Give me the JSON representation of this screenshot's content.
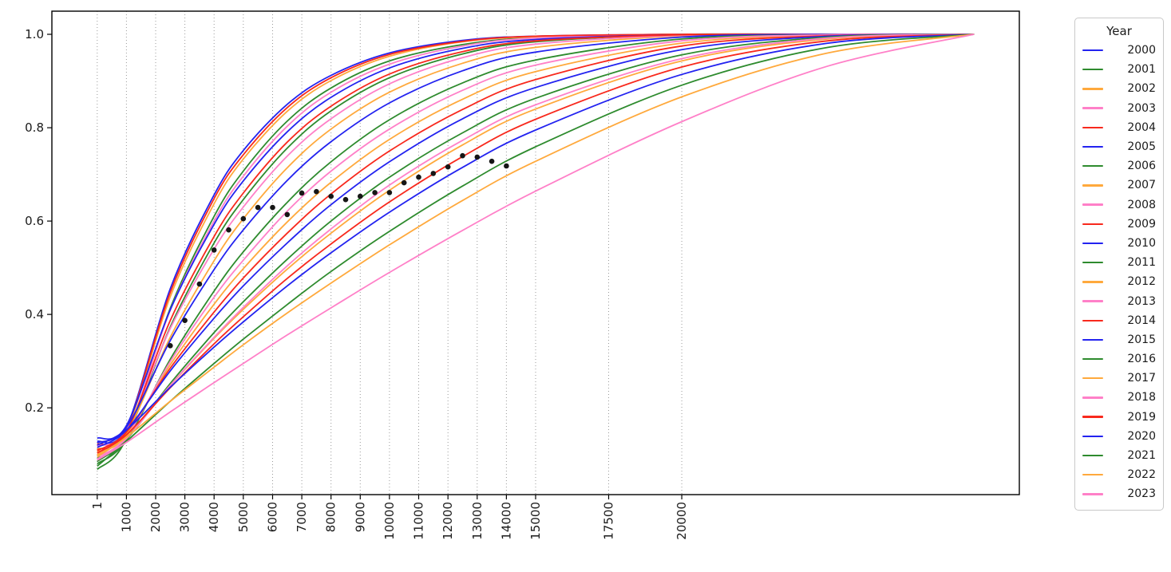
{
  "figure": {
    "background": "#ffffff"
  },
  "legend": {
    "title": "Year"
  },
  "chart_data": {
    "type": "line",
    "title": "",
    "xlabel": "",
    "ylabel": "",
    "grid": "vertical-dotted",
    "grid_color": "#9a9a9a",
    "axis_color": "#000000",
    "tick_label_color": "#1a1a1a",
    "xlim": [
      -1550,
      31550
    ],
    "ylim": [
      0.014,
      1.0496
    ],
    "x_ticks": [
      1,
      1000,
      2000,
      3000,
      4000,
      5000,
      6000,
      7000,
      8000,
      9000,
      10000,
      11000,
      12000,
      13000,
      14000,
      15000,
      17500,
      20000
    ],
    "y_ticks": [
      0.2,
      0.4,
      0.6,
      0.8,
      1.0
    ],
    "legend_position": "right",
    "x_samples": [
      1,
      1000,
      2500,
      4000,
      5000,
      6500,
      8000,
      10000,
      12500,
      15000,
      20000,
      25000,
      30000
    ],
    "series": [
      {
        "name": "2000",
        "color": "#2323f0",
        "values": [
          0.128,
          0.158,
          0.455,
          0.656,
          0.751,
          0.85,
          0.912,
          0.96,
          0.987,
          0.996,
          1.0,
          1.0,
          1.0
        ]
      },
      {
        "name": "2001",
        "color": "#2e8b2e",
        "values": [
          0.068,
          0.135,
          0.413,
          0.61,
          0.707,
          0.814,
          0.885,
          0.943,
          0.978,
          0.993,
          1.0,
          1.0,
          1.0
        ]
      },
      {
        "name": "2002",
        "color": "#ffa93c",
        "values": [
          0.112,
          0.15,
          0.438,
          0.637,
          0.733,
          0.835,
          0.901,
          0.953,
          0.984,
          0.995,
          1.0,
          1.0,
          1.0
        ]
      },
      {
        "name": "2003",
        "color": "#ff80c8",
        "values": [
          0.1,
          0.142,
          0.409,
          0.6,
          0.696,
          0.803,
          0.876,
          0.936,
          0.975,
          0.992,
          1.0,
          1.0,
          1.0
        ]
      },
      {
        "name": "2004",
        "color": "#f8291d",
        "values": [
          0.122,
          0.155,
          0.447,
          0.648,
          0.742,
          0.843,
          0.907,
          0.957,
          0.985,
          0.996,
          1.0,
          1.0,
          1.0
        ]
      },
      {
        "name": "2005",
        "color": "#2323f0",
        "values": [
          0.135,
          0.162,
          0.41,
          0.593,
          0.686,
          0.791,
          0.865,
          0.928,
          0.97,
          0.989,
          0.999,
          1.0,
          1.0
        ]
      },
      {
        "name": "2006",
        "color": "#2e8b2e",
        "values": [
          0.092,
          0.138,
          0.373,
          0.553,
          0.646,
          0.756,
          0.836,
          0.907,
          0.958,
          0.984,
          0.999,
          1.0,
          1.0
        ]
      },
      {
        "name": "2007",
        "color": "#ffa93c",
        "values": [
          0.105,
          0.145,
          0.351,
          0.515,
          0.605,
          0.714,
          0.797,
          0.876,
          0.938,
          0.972,
          0.997,
          1.0,
          1.0
        ]
      },
      {
        "name": "2008",
        "color": "#ff80c8",
        "values": [
          0.118,
          0.152,
          0.37,
          0.54,
          0.63,
          0.739,
          0.819,
          0.894,
          0.95,
          0.979,
          0.998,
          1.0,
          1.0
        ]
      },
      {
        "name": "2009",
        "color": "#f8291d",
        "values": [
          0.11,
          0.148,
          0.387,
          0.567,
          0.66,
          0.769,
          0.846,
          0.915,
          0.963,
          0.986,
          0.999,
          1.0,
          1.0
        ]
      },
      {
        "name": "2010",
        "color": "#2323f0",
        "values": [
          0.125,
          0.158,
          0.344,
          0.496,
          0.581,
          0.687,
          0.77,
          0.853,
          0.922,
          0.962,
          0.994,
          1.0,
          1.0
        ]
      },
      {
        "name": "2011",
        "color": "#2e8b2e",
        "values": [
          0.08,
          0.13,
          0.304,
          0.45,
          0.534,
          0.64,
          0.727,
          0.817,
          0.896,
          0.945,
          0.99,
          0.999,
          1.0
        ]
      },
      {
        "name": "2012",
        "color": "#ffa93c",
        "values": [
          0.1,
          0.143,
          0.292,
          0.422,
          0.498,
          0.598,
          0.683,
          0.775,
          0.861,
          0.92,
          0.981,
          0.998,
          1.0
        ]
      },
      {
        "name": "2013",
        "color": "#ff80c8",
        "values": [
          0.095,
          0.138,
          0.299,
          0.437,
          0.516,
          0.621,
          0.707,
          0.797,
          0.88,
          0.934,
          0.986,
          0.999,
          1.0
        ]
      },
      {
        "name": "2014",
        "color": "#f8291d",
        "values": [
          0.108,
          0.148,
          0.285,
          0.405,
          0.478,
          0.574,
          0.658,
          0.75,
          0.839,
          0.903,
          0.975,
          0.997,
          1.0
        ]
      },
      {
        "name": "2015",
        "color": "#2323f0",
        "values": [
          0.115,
          0.152,
          0.279,
          0.392,
          0.461,
          0.553,
          0.635,
          0.727,
          0.819,
          0.886,
          0.967,
          0.996,
          1.0
        ]
      },
      {
        "name": "2016",
        "color": "#2e8b2e",
        "values": [
          0.085,
          0.132,
          0.252,
          0.361,
          0.427,
          0.518,
          0.6,
          0.694,
          0.789,
          0.863,
          0.956,
          0.994,
          1.0
        ]
      },
      {
        "name": "2017",
        "color": "#ffa93c",
        "values": [
          0.098,
          0.14,
          0.248,
          0.349,
          0.411,
          0.497,
          0.574,
          0.666,
          0.763,
          0.84,
          0.943,
          0.99,
          1.0
        ]
      },
      {
        "name": "2018",
        "color": "#ff80c8",
        "values": [
          0.09,
          0.134,
          0.248,
          0.351,
          0.415,
          0.504,
          0.583,
          0.677,
          0.773,
          0.849,
          0.948,
          0.992,
          1.0
        ]
      },
      {
        "name": "2019",
        "color": "#f8291d",
        "values": [
          0.103,
          0.142,
          0.243,
          0.337,
          0.395,
          0.477,
          0.551,
          0.641,
          0.738,
          0.818,
          0.93,
          0.986,
          1.0
        ]
      },
      {
        "name": "2020",
        "color": "#2323f0",
        "values": [
          0.12,
          0.153,
          0.244,
          0.33,
          0.384,
          0.461,
          0.532,
          0.619,
          0.715,
          0.795,
          0.914,
          0.981,
          1.0
        ]
      },
      {
        "name": "2021",
        "color": "#2e8b2e",
        "values": [
          0.075,
          0.128,
          0.214,
          0.295,
          0.347,
          0.421,
          0.492,
          0.578,
          0.675,
          0.759,
          0.891,
          0.972,
          1.0
        ]
      },
      {
        "name": "2022",
        "color": "#ffa93c",
        "values": [
          0.095,
          0.137,
          0.214,
          0.287,
          0.335,
          0.403,
          0.467,
          0.549,
          0.644,
          0.728,
          0.866,
          0.96,
          1.0
        ]
      },
      {
        "name": "2023",
        "color": "#ff80c8",
        "values": [
          0.088,
          0.126,
          0.191,
          0.254,
          0.295,
          0.356,
          0.414,
          0.49,
          0.58,
          0.664,
          0.813,
          0.932,
          1.0
        ]
      }
    ],
    "scatter": {
      "name": "black-dots",
      "color": "#161616",
      "points": [
        [
          2500,
          0.333
        ],
        [
          3000,
          0.387
        ],
        [
          3500,
          0.465
        ],
        [
          4000,
          0.538
        ],
        [
          4500,
          0.581
        ],
        [
          5000,
          0.605
        ],
        [
          5500,
          0.629
        ],
        [
          6000,
          0.629
        ],
        [
          6500,
          0.614
        ],
        [
          7000,
          0.66
        ],
        [
          7500,
          0.663
        ],
        [
          8000,
          0.653
        ],
        [
          8500,
          0.646
        ],
        [
          9000,
          0.653
        ],
        [
          9500,
          0.661
        ],
        [
          10000,
          0.661
        ],
        [
          10500,
          0.682
        ],
        [
          11000,
          0.694
        ],
        [
          11500,
          0.702
        ],
        [
          12000,
          0.716
        ],
        [
          12500,
          0.74
        ],
        [
          13000,
          0.737
        ],
        [
          13500,
          0.728
        ],
        [
          14000,
          0.718
        ]
      ]
    }
  }
}
